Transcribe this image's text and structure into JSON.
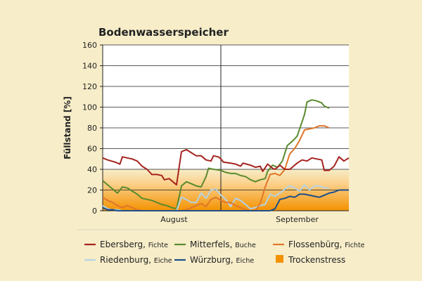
{
  "chart_data": {
    "type": "line",
    "title": "Bodenwasserspeicher",
    "ylabel": "Füllstand [%]",
    "xlabel": "",
    "ylim": [
      0,
      160
    ],
    "yticks": [
      0,
      20,
      40,
      60,
      80,
      100,
      120,
      140,
      160
    ],
    "xlim": [
      0,
      100
    ],
    "x_tick_labels": [
      {
        "label": "August",
        "x": 29
      },
      {
        "label": "September",
        "x": 79
      }
    ],
    "month_divider_x": 48,
    "grid": "horizontal",
    "legend_placement": "bottom",
    "stress_band": {
      "label": "Trockenstress",
      "y_range": [
        0,
        40
      ],
      "color": "#f39200"
    },
    "series": [
      {
        "name": "Ebersberg",
        "species": "Fichte",
        "color": "#a5231f",
        "points": [
          [
            0,
            51
          ],
          [
            2,
            49
          ],
          [
            5,
            47
          ],
          [
            7,
            45
          ],
          [
            8,
            52
          ],
          [
            10,
            51
          ],
          [
            12,
            50
          ],
          [
            14,
            48
          ],
          [
            16,
            43
          ],
          [
            18,
            40
          ],
          [
            20,
            35
          ],
          [
            22,
            35
          ],
          [
            24,
            34
          ],
          [
            25,
            30
          ],
          [
            27,
            31
          ],
          [
            29,
            27
          ],
          [
            30,
            25
          ],
          [
            32,
            57
          ],
          [
            34,
            59
          ],
          [
            36,
            56
          ],
          [
            38,
            53
          ],
          [
            40,
            53
          ],
          [
            42,
            49
          ],
          [
            44,
            48
          ],
          [
            45,
            53
          ],
          [
            47,
            52
          ],
          [
            48,
            50
          ],
          [
            49,
            47
          ],
          [
            52,
            46
          ],
          [
            54,
            45
          ],
          [
            56,
            43
          ],
          [
            57,
            46
          ],
          [
            60,
            44
          ],
          [
            62,
            42
          ],
          [
            64,
            43
          ],
          [
            65,
            38
          ],
          [
            67,
            45
          ],
          [
            69,
            41
          ],
          [
            70,
            40
          ],
          [
            72,
            44
          ],
          [
            74,
            40
          ],
          [
            76,
            40
          ],
          [
            77,
            42
          ],
          [
            79,
            46
          ],
          [
            81,
            49
          ],
          [
            83,
            48
          ],
          [
            85,
            51
          ],
          [
            87,
            50
          ],
          [
            89,
            49
          ],
          [
            90,
            39
          ],
          [
            92,
            39
          ],
          [
            94,
            43
          ],
          [
            96,
            52
          ],
          [
            98,
            48
          ],
          [
            100,
            51
          ]
        ]
      },
      {
        "name": "Mitterfels",
        "species": "Buche",
        "color": "#5a8a2e",
        "points": [
          [
            0,
            29
          ],
          [
            2,
            25
          ],
          [
            4,
            21
          ],
          [
            6,
            17
          ],
          [
            8,
            23
          ],
          [
            10,
            22
          ],
          [
            12,
            19
          ],
          [
            14,
            16
          ],
          [
            16,
            12
          ],
          [
            18,
            11
          ],
          [
            20,
            10
          ],
          [
            22,
            8
          ],
          [
            24,
            6
          ],
          [
            26,
            5
          ],
          [
            28,
            3
          ],
          [
            30,
            2
          ],
          [
            32,
            24
          ],
          [
            34,
            28
          ],
          [
            36,
            26
          ],
          [
            38,
            24
          ],
          [
            40,
            23
          ],
          [
            42,
            33
          ],
          [
            43,
            41
          ],
          [
            45,
            40
          ],
          [
            48,
            39
          ],
          [
            50,
            37
          ],
          [
            52,
            36
          ],
          [
            54,
            36
          ],
          [
            56,
            34
          ],
          [
            58,
            33
          ],
          [
            60,
            30
          ],
          [
            62,
            28
          ],
          [
            64,
            30
          ],
          [
            66,
            31
          ],
          [
            67,
            38
          ],
          [
            69,
            44
          ],
          [
            71,
            42
          ],
          [
            73,
            48
          ],
          [
            75,
            63
          ],
          [
            77,
            67
          ],
          [
            79,
            72
          ],
          [
            81,
            86
          ],
          [
            82,
            93
          ],
          [
            83,
            105
          ],
          [
            85,
            107
          ],
          [
            87,
            106
          ],
          [
            89,
            104
          ],
          [
            90,
            101
          ],
          [
            92,
            99
          ]
        ]
      },
      {
        "name": "Flossenbürg",
        "species": "Fichte",
        "color": "#e0762b",
        "points": [
          [
            0,
            13
          ],
          [
            2,
            10
          ],
          [
            4,
            8
          ],
          [
            6,
            5
          ],
          [
            8,
            3
          ],
          [
            10,
            5
          ],
          [
            12,
            3
          ],
          [
            14,
            1
          ],
          [
            16,
            0
          ],
          [
            18,
            0
          ],
          [
            20,
            0
          ],
          [
            22,
            0
          ],
          [
            24,
            0
          ],
          [
            26,
            0
          ],
          [
            28,
            0
          ],
          [
            30,
            0
          ],
          [
            32,
            0
          ],
          [
            34,
            1
          ],
          [
            36,
            3
          ],
          [
            38,
            5
          ],
          [
            40,
            7
          ],
          [
            42,
            4
          ],
          [
            44,
            11
          ],
          [
            46,
            13
          ],
          [
            48,
            10
          ],
          [
            50,
            8
          ],
          [
            52,
            8
          ],
          [
            54,
            5
          ],
          [
            56,
            3
          ],
          [
            58,
            1
          ],
          [
            60,
            0
          ],
          [
            62,
            0
          ],
          [
            64,
            7
          ],
          [
            66,
            23
          ],
          [
            68,
            35
          ],
          [
            70,
            36
          ],
          [
            72,
            34
          ],
          [
            74,
            40
          ],
          [
            76,
            55
          ],
          [
            78,
            60
          ],
          [
            80,
            68
          ],
          [
            82,
            78
          ],
          [
            84,
            79
          ],
          [
            86,
            80
          ],
          [
            88,
            82
          ],
          [
            90,
            82
          ],
          [
            92,
            80
          ]
        ]
      },
      {
        "name": "Riedenburg",
        "species": "Eiche",
        "color": "#b5d3e5",
        "points": [
          [
            0,
            5
          ],
          [
            2,
            2
          ],
          [
            4,
            1
          ],
          [
            6,
            1
          ],
          [
            8,
            0
          ],
          [
            10,
            0
          ],
          [
            12,
            0
          ],
          [
            14,
            0
          ],
          [
            16,
            0
          ],
          [
            18,
            0
          ],
          [
            20,
            0
          ],
          [
            22,
            0
          ],
          [
            24,
            0
          ],
          [
            26,
            0
          ],
          [
            28,
            0
          ],
          [
            30,
            0
          ],
          [
            32,
            13
          ],
          [
            34,
            11
          ],
          [
            36,
            8
          ],
          [
            38,
            8
          ],
          [
            40,
            17
          ],
          [
            42,
            12
          ],
          [
            44,
            20
          ],
          [
            46,
            21
          ],
          [
            48,
            15
          ],
          [
            50,
            11
          ],
          [
            52,
            4
          ],
          [
            54,
            12
          ],
          [
            56,
            10
          ],
          [
            58,
            6
          ],
          [
            60,
            2
          ],
          [
            62,
            3
          ],
          [
            64,
            5
          ],
          [
            66,
            6
          ],
          [
            68,
            16
          ],
          [
            70,
            14
          ],
          [
            72,
            17
          ],
          [
            74,
            21
          ],
          [
            76,
            24
          ],
          [
            78,
            22
          ],
          [
            80,
            19
          ],
          [
            82,
            25
          ],
          [
            84,
            20
          ],
          [
            86,
            24
          ],
          [
            88,
            24
          ],
          [
            90,
            22
          ],
          [
            92,
            22
          ]
        ]
      },
      {
        "name": "Würzburg",
        "species": "Eiche",
        "color": "#1d4f8c",
        "points": [
          [
            0,
            3
          ],
          [
            2,
            1
          ],
          [
            4,
            1
          ],
          [
            6,
            0
          ],
          [
            8,
            0
          ],
          [
            10,
            0
          ],
          [
            12,
            0
          ],
          [
            14,
            0
          ],
          [
            16,
            0
          ],
          [
            18,
            0
          ],
          [
            20,
            0
          ],
          [
            22,
            0
          ],
          [
            24,
            0
          ],
          [
            26,
            0
          ],
          [
            28,
            0
          ],
          [
            30,
            0
          ],
          [
            32,
            0
          ],
          [
            34,
            0
          ],
          [
            36,
            0
          ],
          [
            38,
            0
          ],
          [
            40,
            0
          ],
          [
            42,
            0
          ],
          [
            44,
            0
          ],
          [
            46,
            0
          ],
          [
            48,
            0
          ],
          [
            50,
            0
          ],
          [
            52,
            0
          ],
          [
            54,
            0
          ],
          [
            56,
            0
          ],
          [
            58,
            0
          ],
          [
            60,
            0
          ],
          [
            62,
            0
          ],
          [
            64,
            0
          ],
          [
            66,
            0
          ],
          [
            68,
            0
          ],
          [
            70,
            2
          ],
          [
            72,
            11
          ],
          [
            74,
            12
          ],
          [
            76,
            14
          ],
          [
            78,
            13
          ],
          [
            80,
            16
          ],
          [
            82,
            16
          ],
          [
            84,
            15
          ],
          [
            86,
            14
          ],
          [
            88,
            13
          ],
          [
            90,
            15
          ],
          [
            92,
            17
          ],
          [
            94,
            18
          ],
          [
            96,
            20
          ],
          [
            98,
            20
          ],
          [
            100,
            20
          ]
        ]
      }
    ]
  }
}
